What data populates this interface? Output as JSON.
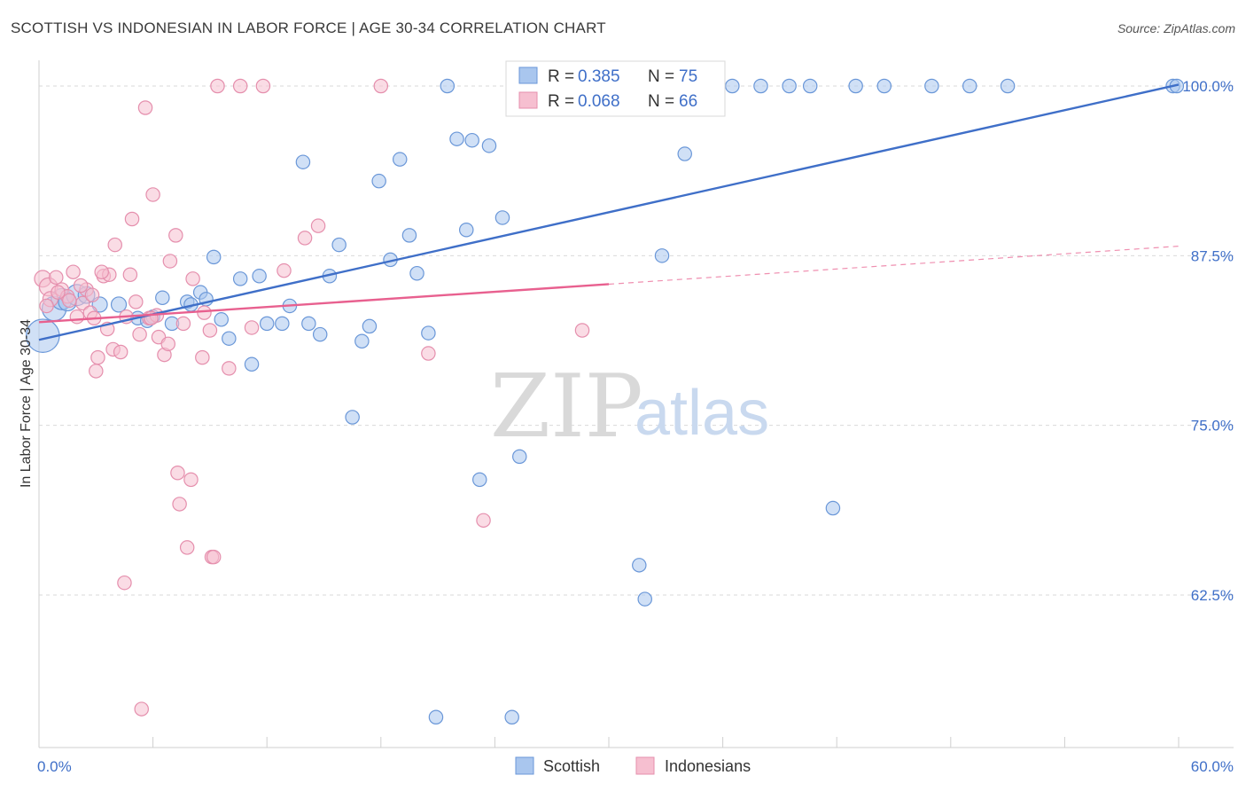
{
  "header": {
    "title": "SCOTTISH VS INDONESIAN IN LABOR FORCE | AGE 30-34 CORRELATION CHART",
    "source": "Source: ZipAtlas.com"
  },
  "watermark": {
    "zip": "ZIP",
    "atlas": "atlas"
  },
  "legend_top": {
    "r_label": "R =",
    "n_label": "N =",
    "rows": [
      {
        "series": "Scottish",
        "r": "0.385",
        "n": "75",
        "color": "#3f6fc8"
      },
      {
        "series": "Indonesians",
        "r": "0.068",
        "n": "66",
        "color": "#e8608f"
      }
    ]
  },
  "legend_bottom": [
    {
      "label": "Scottish",
      "fill": "#a9c6ee",
      "stroke": "#6a97d8"
    },
    {
      "label": "Indonesians",
      "fill": "#f6bfd0",
      "stroke": "#e58fad"
    }
  ],
  "chart_data": {
    "type": "scatter",
    "title": "SCOTTISH VS INDONESIAN IN LABOR FORCE | AGE 30-34 CORRELATION CHART",
    "ylabel": "In Labor Force | Age 30-34",
    "xlabel": "",
    "xlim": [
      0,
      60
    ],
    "ylim": [
      50,
      101.3
    ],
    "x_tick_labels": [
      {
        "value": 0,
        "label": "0.0%"
      },
      {
        "value": 60,
        "label": "60.0%"
      }
    ],
    "y_tick_labels": [
      {
        "value": 100,
        "label": "100.0%"
      },
      {
        "value": 87.5,
        "label": "87.5%"
      },
      {
        "value": 75,
        "label": "75.0%"
      },
      {
        "value": 62.5,
        "label": "62.5%"
      }
    ],
    "x_minor_ticks": [
      0,
      6,
      12,
      18,
      24,
      30,
      36,
      42,
      48,
      54,
      60
    ],
    "grid": "horizontal-dashed",
    "legend_placement": "top-center",
    "series": [
      {
        "name": "Scottish",
        "color": "#3f6fc8",
        "fill": "#a9c6ee",
        "trendline": {
          "x": [
            0,
            60
          ],
          "y": [
            81.3,
            100.1
          ],
          "style": "solid"
        },
        "points": [
          [
            0.2,
            81.6,
            22
          ],
          [
            0.8,
            83.6,
            16
          ],
          [
            1.2,
            84.3,
            14
          ],
          [
            1.5,
            84.1,
            12
          ],
          [
            2.0,
            84.6,
            14
          ],
          [
            2.5,
            84.6,
            11
          ],
          [
            3.2,
            83.9,
            10
          ],
          [
            4.2,
            83.9,
            10
          ],
          [
            5.2,
            82.9,
            9
          ],
          [
            5.7,
            82.7,
            9
          ],
          [
            6.0,
            83.0,
            9
          ],
          [
            6.5,
            84.4,
            9
          ],
          [
            7.0,
            82.5,
            9
          ],
          [
            7.8,
            84.1,
            9
          ],
          [
            8.0,
            83.9,
            9
          ],
          [
            8.5,
            84.8,
            9
          ],
          [
            8.8,
            84.3,
            9
          ],
          [
            9.2,
            87.4,
            9
          ],
          [
            9.6,
            82.8,
            9
          ],
          [
            10.0,
            81.4,
            9
          ],
          [
            10.6,
            85.8,
            9
          ],
          [
            11.2,
            79.5,
            9
          ],
          [
            11.6,
            86.0,
            9
          ],
          [
            12.0,
            82.5,
            9
          ],
          [
            12.8,
            82.5,
            9
          ],
          [
            13.2,
            83.8,
            9
          ],
          [
            13.9,
            94.4,
            9
          ],
          [
            14.2,
            82.5,
            9
          ],
          [
            14.8,
            81.7,
            9
          ],
          [
            15.3,
            86.0,
            9
          ],
          [
            15.8,
            88.3,
            9
          ],
          [
            16.5,
            75.6,
            9
          ],
          [
            17.0,
            81.2,
            9
          ],
          [
            17.4,
            82.3,
            9
          ],
          [
            17.9,
            93.0,
            9
          ],
          [
            18.5,
            87.2,
            9
          ],
          [
            19.0,
            94.6,
            9
          ],
          [
            19.5,
            89.0,
            9
          ],
          [
            19.9,
            86.2,
            9
          ],
          [
            20.5,
            81.8,
            9
          ],
          [
            20.9,
            53.5,
            9
          ],
          [
            21.5,
            100.0,
            9
          ],
          [
            22.0,
            96.1,
            9
          ],
          [
            22.5,
            89.4,
            9
          ],
          [
            22.8,
            96.0,
            9
          ],
          [
            23.2,
            71.0,
            9
          ],
          [
            23.7,
            95.6,
            9
          ],
          [
            24.4,
            90.3,
            9
          ],
          [
            24.9,
            53.5,
            9
          ],
          [
            25.3,
            72.7,
            9
          ],
          [
            25.8,
            100.0,
            9
          ],
          [
            26.5,
            100.0,
            9
          ],
          [
            27.5,
            100.0,
            9
          ],
          [
            28.5,
            100.0,
            9
          ],
          [
            29.5,
            100.0,
            9
          ],
          [
            31.0,
            100.0,
            9
          ],
          [
            31.6,
            64.7,
            9
          ],
          [
            31.9,
            62.2,
            9
          ],
          [
            32.4,
            100.0,
            9
          ],
          [
            32.8,
            87.5,
            9
          ],
          [
            33.5,
            100.0,
            9
          ],
          [
            34.0,
            95.0,
            9
          ],
          [
            35.0,
            100.0,
            9
          ],
          [
            36.5,
            100.0,
            9
          ],
          [
            38.0,
            100.0,
            9
          ],
          [
            39.5,
            100.0,
            9
          ],
          [
            40.6,
            100.0,
            9
          ],
          [
            41.8,
            68.9,
            9
          ],
          [
            43.0,
            100.0,
            9
          ],
          [
            44.5,
            100.0,
            9
          ],
          [
            47.0,
            100.0,
            9
          ],
          [
            49.0,
            100.0,
            9
          ],
          [
            51.0,
            100.0,
            9
          ],
          [
            59.7,
            100.0,
            9
          ],
          [
            59.9,
            100.0,
            9
          ]
        ]
      },
      {
        "name": "Indonesians",
        "color": "#e8608f",
        "fill": "#f6bfd0",
        "trendline": {
          "x": [
            0,
            30
          ],
          "y": [
            82.6,
            85.4
          ],
          "style": "solid",
          "extension": {
            "x": [
              30,
              60
            ],
            "y": [
              85.4,
              88.2
            ],
            "style": "dashed"
          }
        },
        "points": [
          [
            0.2,
            85.8,
            11
          ],
          [
            0.5,
            85.2,
            12
          ],
          [
            0.6,
            84.3,
            10
          ],
          [
            0.9,
            85.9,
            9
          ],
          [
            1.2,
            85.0,
            9
          ],
          [
            1.5,
            84.5,
            9
          ],
          [
            1.8,
            86.3,
            9
          ],
          [
            2.0,
            83.0,
            9
          ],
          [
            2.3,
            84.0,
            9
          ],
          [
            2.5,
            85.0,
            9
          ],
          [
            2.7,
            83.3,
            9
          ],
          [
            2.9,
            82.9,
            9
          ],
          [
            3.0,
            79.0,
            9
          ],
          [
            3.1,
            80.0,
            9
          ],
          [
            3.4,
            86.0,
            9
          ],
          [
            3.6,
            82.1,
            9
          ],
          [
            3.7,
            86.1,
            9
          ],
          [
            3.9,
            80.6,
            9
          ],
          [
            4.0,
            88.3,
            9
          ],
          [
            4.3,
            80.4,
            9
          ],
          [
            4.5,
            63.4,
            9
          ],
          [
            4.6,
            83.0,
            9
          ],
          [
            4.9,
            90.2,
            9
          ],
          [
            5.1,
            84.1,
            9
          ],
          [
            5.3,
            81.7,
            9
          ],
          [
            5.4,
            54.1,
            9
          ],
          [
            5.6,
            98.4,
            9
          ],
          [
            5.8,
            82.9,
            9
          ],
          [
            6.0,
            92.0,
            9
          ],
          [
            6.3,
            81.5,
            9
          ],
          [
            6.6,
            80.2,
            9
          ],
          [
            6.8,
            81.0,
            9
          ],
          [
            6.9,
            87.1,
            9
          ],
          [
            7.2,
            89.0,
            9
          ],
          [
            7.3,
            71.5,
            9
          ],
          [
            7.4,
            69.2,
            9
          ],
          [
            7.8,
            66.0,
            9
          ],
          [
            8.0,
            71.0,
            9
          ],
          [
            8.1,
            85.8,
            9
          ],
          [
            8.6,
            80.0,
            9
          ],
          [
            9.0,
            82.0,
            9
          ],
          [
            9.1,
            65.3,
            9
          ],
          [
            9.2,
            65.3,
            9
          ],
          [
            8.7,
            83.3,
            9
          ],
          [
            9.4,
            100.0,
            9
          ],
          [
            10.0,
            79.2,
            9
          ],
          [
            10.6,
            100.0,
            9
          ],
          [
            11.2,
            82.2,
            9
          ],
          [
            11.8,
            100.0,
            9
          ],
          [
            12.9,
            86.4,
            9
          ],
          [
            14.0,
            88.8,
            9
          ],
          [
            14.7,
            89.7,
            9
          ],
          [
            18.0,
            100.0,
            9
          ],
          [
            20.5,
            80.3,
            9
          ],
          [
            23.4,
            68.0,
            9
          ],
          [
            28.6,
            82.0,
            9
          ],
          [
            1.0,
            84.8,
            9
          ],
          [
            2.2,
            85.3,
            9
          ],
          [
            1.6,
            84.2,
            9
          ],
          [
            3.3,
            86.3,
            9
          ],
          [
            4.8,
            86.1,
            9
          ],
          [
            6.2,
            83.1,
            9
          ],
          [
            7.6,
            82.5,
            9
          ],
          [
            5.9,
            82.9,
            9
          ],
          [
            2.8,
            84.6,
            9
          ],
          [
            0.4,
            83.8,
            9
          ]
        ]
      }
    ]
  }
}
